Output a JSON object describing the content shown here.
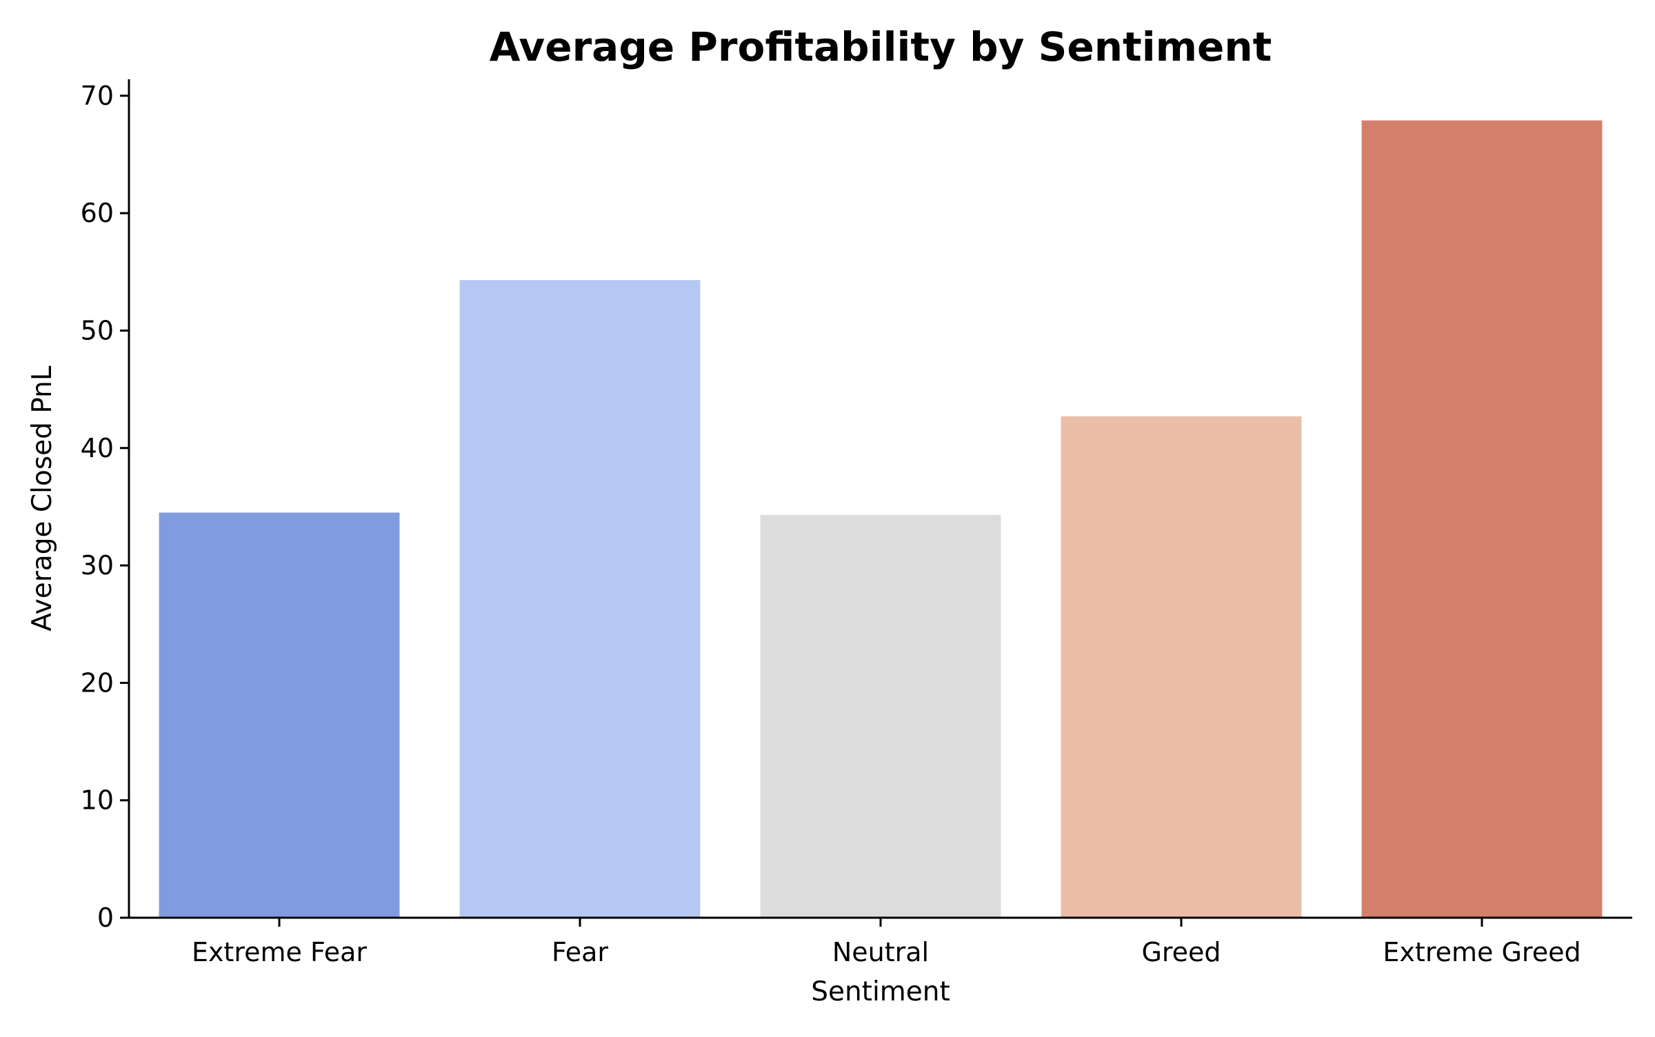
{
  "chart_data": {
    "type": "bar",
    "title": "Average Profitability by Sentiment",
    "xlabel": "Sentiment",
    "ylabel": "Average Closed PnL",
    "categories": [
      "Extreme Fear",
      "Fear",
      "Neutral",
      "Greed",
      "Extreme Greed"
    ],
    "values": [
      34.5,
      54.3,
      34.3,
      42.7,
      67.9
    ],
    "colors": [
      "#819bdf",
      "#b5c8f2",
      "#dcdcdc",
      "#eabda7",
      "#d47f6c"
    ],
    "ylim": [
      0,
      71.4
    ],
    "yticks": [
      0,
      10,
      20,
      30,
      40,
      50,
      60,
      70
    ],
    "grid": false,
    "legend": "none"
  }
}
